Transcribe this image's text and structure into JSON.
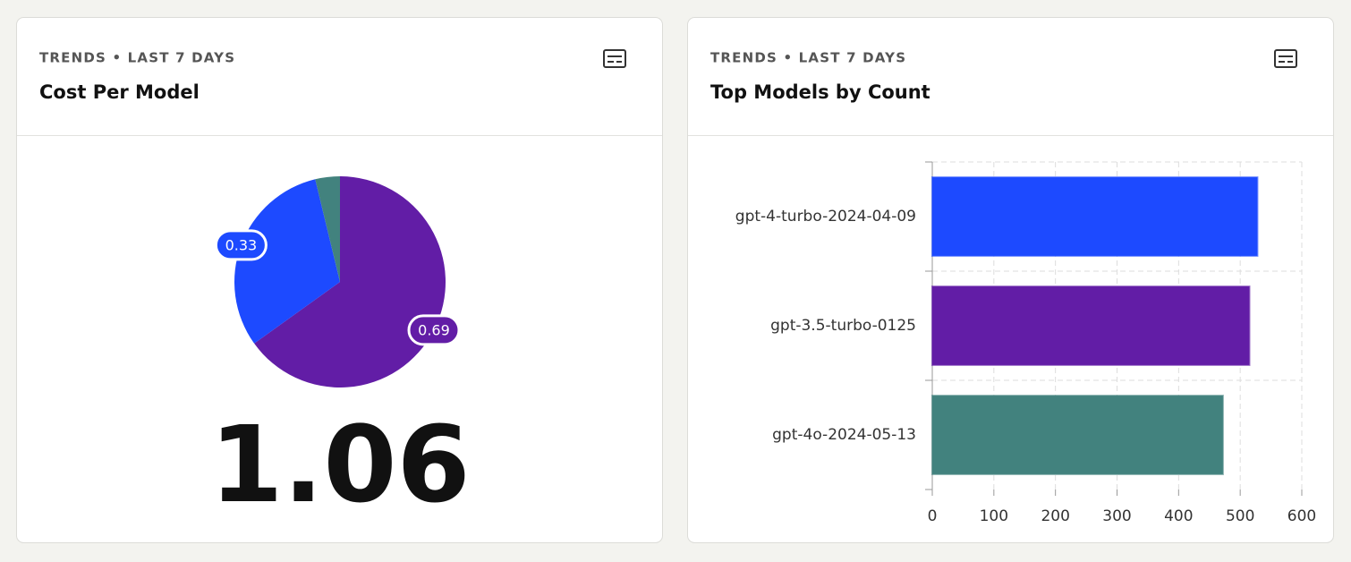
{
  "chart_data": [
    {
      "type": "pie",
      "subtitle": "TRENDS • LAST 7 DAYS",
      "title": "Cost Per Model",
      "values": [
        0.69,
        0.33,
        0.04
      ],
      "colors": [
        "#621da6",
        "#1d4aff",
        "#42827e"
      ],
      "total": 1.06
    },
    {
      "type": "bar",
      "orientation": "horizontal",
      "subtitle": "TRENDS • LAST 7 DAYS",
      "title": "Top Models by Count",
      "categories": [
        "gpt-4-turbo-2024-04-09",
        "gpt-3.5-turbo-0125",
        "gpt-4o-2024-05-13"
      ],
      "values": [
        528,
        515,
        472
      ],
      "colors": [
        "#1d4aff",
        "#621da6",
        "#42827e"
      ],
      "xlim": [
        0,
        600
      ],
      "xticks": [
        0,
        100,
        200,
        300,
        400,
        500,
        600
      ],
      "grid": true
    }
  ]
}
